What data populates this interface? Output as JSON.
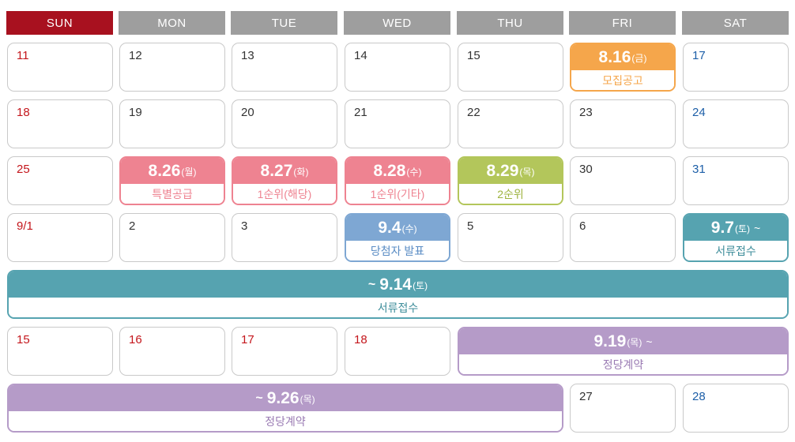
{
  "headers": [
    "SUN",
    "MON",
    "TUE",
    "WED",
    "THU",
    "FRI",
    "SAT"
  ],
  "colors": {
    "sun_header": "#a8111f",
    "weekday_header": "#9e9e9e",
    "sunday_text": "#c4161c",
    "saturday_text": "#1d5fa8",
    "orange": "#f5a64b",
    "pink": "#ee8391",
    "green": "#b3c65b",
    "blue": "#7ea7d3",
    "teal": "#56a3b0",
    "purple": "#b59bc8"
  },
  "days": {
    "w1_sun": "11",
    "w1_mon": "12",
    "w1_tue": "13",
    "w1_wed": "14",
    "w1_thu": "15",
    "w1_sat": "17",
    "w2_sun": "18",
    "w2_mon": "19",
    "w2_tue": "20",
    "w2_wed": "21",
    "w2_thu": "22",
    "w2_fri": "23",
    "w2_sat": "24",
    "w3_sun": "25",
    "w3_fri": "30",
    "w3_sat": "31",
    "w4_sun": "9/1",
    "w4_mon": "2",
    "w4_tue": "3",
    "w4_thu": "5",
    "w4_fri": "6",
    "w6_sun": "15",
    "w6_mon": "16",
    "w6_tue": "17",
    "w6_wed": "18",
    "w7_fri": "27",
    "w7_sat": "28"
  },
  "events": {
    "recruit_notice": {
      "date": "8.16",
      "day": "(금)",
      "label": "모집공고"
    },
    "special_supply": {
      "date": "8.26",
      "day": "(월)",
      "label": "특별공급"
    },
    "first_rank_local": {
      "date": "8.27",
      "day": "(화)",
      "label": "1순위(해당)"
    },
    "first_rank_other": {
      "date": "8.28",
      "day": "(수)",
      "label": "1순위(기타)"
    },
    "second_rank": {
      "date": "8.29",
      "day": "(목)",
      "label": "2순위"
    },
    "winner_announce": {
      "date": "9.4",
      "day": "(수)",
      "label": "당첨자 발표"
    },
    "docs_start": {
      "date": "9.7",
      "day": "(토)",
      "tilde": "~",
      "label": "서류접수"
    },
    "docs_end": {
      "prefix": "~",
      "date": "9.14",
      "day": "(토)",
      "label": "서류접수"
    },
    "contract_start": {
      "date": "9.19",
      "day": "(목)",
      "tilde": "~",
      "label": "정당계약"
    },
    "contract_end": {
      "prefix": "~",
      "date": "9.26",
      "day": "(목)",
      "label": "정당계약"
    }
  }
}
